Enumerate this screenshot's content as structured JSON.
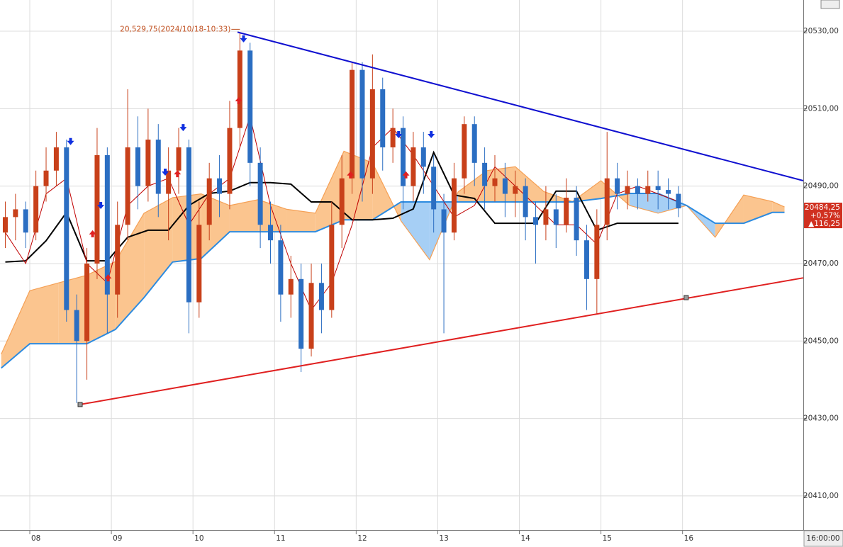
{
  "chart_data": {
    "type": "candlestick",
    "x": [
      7.7,
      7.825,
      7.95,
      8.075,
      8.2,
      8.325,
      8.45,
      8.575,
      8.7,
      8.825,
      8.95,
      9.075,
      9.2,
      9.325,
      9.45,
      9.575,
      9.7,
      9.825,
      9.95,
      10.075,
      10.2,
      10.325,
      10.45,
      10.575,
      10.7,
      10.825,
      10.95,
      11.075,
      11.2,
      11.325,
      11.45,
      11.575,
      11.7,
      11.825,
      11.95,
      12.075,
      12.2,
      12.325,
      12.45,
      12.575,
      12.7,
      12.825,
      12.95,
      13.075,
      13.2,
      13.325,
      13.45,
      13.575,
      13.7,
      13.825,
      13.95,
      14.075,
      14.2,
      14.325,
      14.45,
      14.575,
      14.7,
      14.825,
      14.95,
      15.075,
      15.2,
      15.325,
      15.45,
      15.575,
      15.7,
      15.825,
      15.95
    ],
    "open": [
      20478,
      20482,
      20484,
      20478,
      20490,
      20494,
      20500,
      20458,
      20450,
      20470,
      20498,
      20462,
      20480,
      20500,
      20490,
      20502,
      20488,
      20494,
      20500,
      20460,
      20480,
      20492,
      20488,
      20505,
      20525,
      20496,
      20480,
      20476,
      20462,
      20466,
      20448,
      20465,
      20458,
      20480,
      20492,
      20520,
      20492,
      20515,
      20500,
      20505,
      20490,
      20500,
      20495,
      20484,
      20478,
      20492,
      20506,
      20496,
      20490,
      20492,
      20488,
      20490,
      20482,
      20480,
      20484,
      20480,
      20487,
      20476,
      20466,
      20480,
      20492,
      20488,
      20490,
      20488,
      20490,
      20489,
      20488
    ],
    "high": [
      20486,
      20488,
      20486,
      20494,
      20500,
      20504,
      20502,
      20462,
      20474,
      20505,
      20500,
      20486,
      20515,
      20508,
      20510,
      20506,
      20500,
      20505,
      20502,
      20486,
      20496,
      20498,
      20512,
      20529.75,
      20527,
      20500,
      20486,
      20480,
      20472,
      20470,
      20470,
      20470,
      20486,
      20498,
      20522,
      20522,
      20524,
      20518,
      20510,
      20508,
      20504,
      20504,
      20498,
      20488,
      20496,
      20508,
      20508,
      20500,
      20498,
      20496,
      20494,
      20492,
      20486,
      20490,
      20488,
      20492,
      20490,
      20480,
      20484,
      20504,
      20496,
      20494,
      20492,
      20494,
      20494,
      20492,
      20490
    ],
    "low": [
      20474,
      20476,
      20474,
      20476,
      20486,
      20490,
      20455,
      20434,
      20440,
      20466,
      20452,
      20456,
      20476,
      20484,
      20486,
      20482,
      20476,
      20488,
      20452,
      20456,
      20476,
      20482,
      20484,
      20500,
      20490,
      20474,
      20470,
      20455,
      20456,
      20442,
      20446,
      20452,
      20456,
      20474,
      20488,
      20486,
      20488,
      20494,
      20496,
      20484,
      20486,
      20488,
      20478,
      20452,
      20476,
      20488,
      20490,
      20484,
      20486,
      20482,
      20482,
      20476,
      20470,
      20476,
      20474,
      20478,
      20472,
      20458,
      20457,
      20476,
      20484,
      20484,
      20484,
      20486,
      20484,
      20484,
      20482
    ],
    "close": [
      20482,
      20484,
      20478,
      20490,
      20494,
      20500,
      20458,
      20450,
      20470,
      20498,
      20462,
      20480,
      20500,
      20490,
      20502,
      20488,
      20494,
      20500,
      20460,
      20480,
      20492,
      20488,
      20505,
      20525,
      20496,
      20480,
      20476,
      20462,
      20466,
      20448,
      20465,
      20458,
      20480,
      20492,
      20520,
      20492,
      20515,
      20500,
      20505,
      20490,
      20500,
      20495,
      20484,
      20478,
      20492,
      20506,
      20496,
      20490,
      20492,
      20488,
      20490,
      20482,
      20480,
      20484,
      20480,
      20487,
      20476,
      20466,
      20480,
      20492,
      20488,
      20490,
      20488,
      20490,
      20489,
      20488,
      20484.25
    ],
    "up_color": "#c8401a",
    "down_color": "#2b6ec2",
    "lines": [
      {
        "color": "#000000",
        "width": 2,
        "x": [
          7.7,
          7.95,
          8.2,
          8.45,
          8.7,
          8.95,
          9.2,
          9.45,
          9.7,
          9.95,
          10.2,
          10.45,
          10.7,
          10.95,
          11.2,
          11.45,
          11.7,
          11.95,
          12.2,
          12.45,
          12.7,
          12.95,
          13.2,
          13.45,
          13.7,
          13.95,
          14.2,
          14.45,
          14.7,
          14.95,
          15.2,
          15.45,
          15.7,
          15.95
        ],
        "values": [
          20470.4,
          20470.7,
          20475.9,
          20483.2,
          20470.7,
          20470.7,
          20476.8,
          20478.6,
          20478.6,
          20485,
          20488.1,
          20488.7,
          20490.9,
          20490.9,
          20490.5,
          20485.9,
          20485.9,
          20481.3,
          20481.3,
          20481.7,
          20484.1,
          20498.7,
          20487.7,
          20486.8,
          20480.4,
          20480.4,
          20480.4,
          20488.7,
          20488.7,
          20478.6,
          20480.4,
          20480.4,
          20480.4,
          20480.4
        ]
      },
      {
        "color": "#c00000",
        "width": 1,
        "x": [
          7.7,
          7.95,
          8.2,
          8.45,
          8.7,
          8.95,
          9.2,
          9.45,
          9.7,
          9.95,
          10.2,
          10.45,
          10.7,
          10.95,
          11.2,
          11.45,
          11.7,
          11.95,
          12.2,
          12.45,
          12.7,
          12.95,
          13.2,
          13.45,
          13.7,
          13.95,
          14.2,
          14.45,
          14.7,
          14.95,
          15.2,
          15.45,
          15.7,
          15.95
        ],
        "values": [
          20478,
          20470,
          20488,
          20492,
          20470,
          20465,
          20485,
          20490,
          20492,
          20480,
          20488,
          20492,
          20508,
          20485,
          20470,
          20458,
          20465,
          20480,
          20500,
          20505,
          20498,
          20490,
          20482,
          20485,
          20495,
          20490,
          20485,
          20480,
          20480,
          20475,
          20488,
          20490,
          20488,
          20486
        ]
      }
    ],
    "cloud": {
      "x": [
        7.65,
        8.0,
        8.35,
        8.7,
        9.05,
        9.4,
        9.75,
        10.1,
        10.45,
        10.8,
        11.15,
        11.5,
        11.85,
        12.2,
        12.55,
        12.9,
        13.25,
        13.6,
        13.95,
        14.3,
        14.65,
        15.0,
        15.35,
        15.7,
        16.05,
        16.4,
        16.75,
        17.1,
        17.25
      ],
      "span_a": [
        20446.6,
        20463,
        20465,
        20467,
        20470.5,
        20483,
        20487,
        20488,
        20485,
        20486.5,
        20484,
        20483,
        20499,
        20496,
        20481,
        20471,
        20488.5,
        20494,
        20495,
        20488.6,
        20486,
        20491.4,
        20485,
        20483,
        20485,
        20476.8,
        20487.7,
        20486,
        20484.6
      ],
      "span_b": [
        20443,
        20449.3,
        20449.3,
        20449.3,
        20453,
        20461.2,
        20470.4,
        20471.3,
        20478.2,
        20478.2,
        20478.2,
        20478.2,
        20481.3,
        20481.3,
        20485.9,
        20485.9,
        20485.9,
        20485.9,
        20485.9,
        20485.9,
        20485.9,
        20486.8,
        20488.1,
        20488.1,
        20485,
        20480.4,
        20480.4,
        20483.2,
        20483.2
      ],
      "bull_color": "#fbc58f",
      "bear_color": "#a6cff5",
      "edge_color": "#f5a055",
      "span_b_color": "#2c8be0"
    },
    "trendlines": [
      {
        "color": "#1010d0",
        "x": [
          10.546,
          17.479
        ],
        "values": [
          20529.75,
          20491.4
        ]
      },
      {
        "color": "#e02020",
        "x": [
          8.617,
          17.479
        ],
        "values": [
          20433.6,
          20466.3
        ]
      }
    ],
    "anchors": {
      "x": [
        8.617,
        16.045
      ],
      "values": [
        20433.6,
        20461.2
      ]
    },
    "signals": {
      "sell": {
        "color": "#1030e0",
        "x": [
          8.5,
          8.87,
          9.66,
          9.88,
          10.62,
          12.52,
          12.92
        ],
        "values": [
          20501.5,
          20485,
          20493.6,
          20505.1,
          20528,
          20503.3,
          20503.3
        ]
      },
      "buy": {
        "color": "#e02020",
        "x": [
          8.77,
          8.96,
          9.81,
          10.56,
          11.93,
          12.61
        ],
        "values": [
          20477.7,
          20466.3,
          20493.2,
          20512.1,
          20492.9,
          20492.9
        ]
      }
    },
    "annotation": "20,529,75(2024/10/18-10:33)",
    "price_tag": [
      "20484,25",
      "+0,57%",
      "▲116,25"
    ],
    "price_tag_color": "#d03020",
    "cursor_label": "16:00:00",
    "xlim": [
      7.635,
      17.48
    ],
    "xticks": [
      {
        "value": 8,
        "label": "08"
      },
      {
        "value": 9,
        "label": "09"
      },
      10,
      11,
      12,
      13,
      14,
      15,
      16
    ],
    "ylim": [
      20401.2,
      20538.05
    ],
    "yticks": [
      {
        "value": 20410,
        "label": "20410,00"
      },
      {
        "value": 20430,
        "label": "20430,00"
      },
      {
        "value": 20450,
        "label": "20450,00"
      },
      {
        "value": 20470,
        "label": "20470,00"
      },
      {
        "value": 20490,
        "label": "20490,00"
      },
      {
        "value": 20510,
        "label": "20510,00"
      },
      {
        "value": 20530,
        "label": "20530,00"
      }
    ],
    "grid": true
  }
}
